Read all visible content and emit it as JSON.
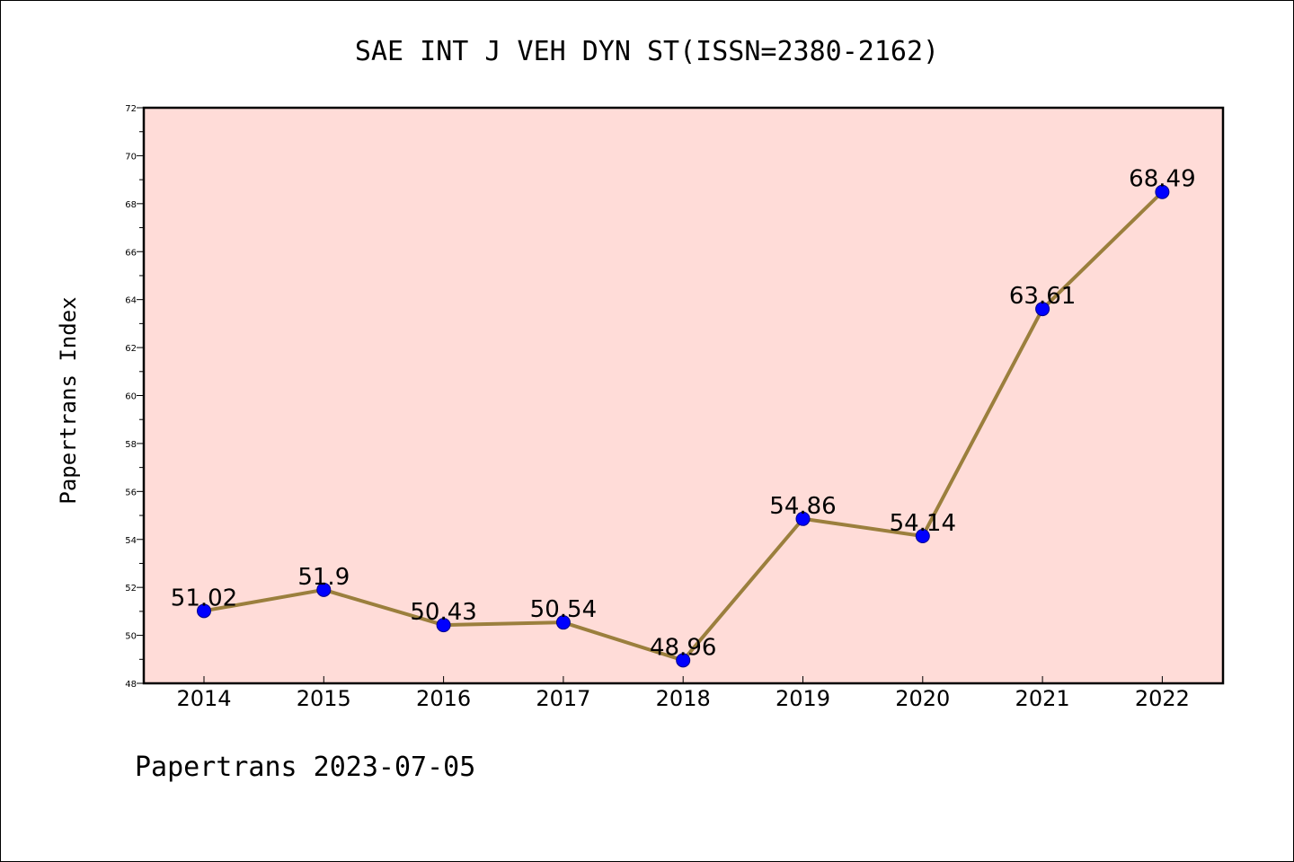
{
  "chart_data": {
    "type": "line",
    "title": "SAE INT J VEH DYN ST(ISSN=2380-2162)",
    "ylabel": "Papertrans Index",
    "xlabel": "",
    "x": [
      "2014",
      "2015",
      "2016",
      "2017",
      "2018",
      "2019",
      "2020",
      "2021",
      "2022"
    ],
    "values": [
      51.02,
      51.9,
      50.43,
      50.54,
      48.96,
      54.86,
      54.14,
      63.61,
      68.49
    ],
    "data_labels": [
      "51.02",
      "51.9",
      "50.43",
      "50.54",
      "48.96",
      "54.86",
      "54.14",
      "63.61",
      "68.49"
    ],
    "ylim": [
      48,
      72
    ],
    "yticks": [
      "48",
      "50",
      "52",
      "54",
      "56",
      "58",
      "60",
      "62",
      "64",
      "66",
      "68",
      "70",
      "72"
    ],
    "grid": false,
    "line_color": "#9b7f3d",
    "marker_color": "#0000ff",
    "plot_background": "#ffdcd8"
  },
  "footer": "Papertrans 2023-07-05"
}
